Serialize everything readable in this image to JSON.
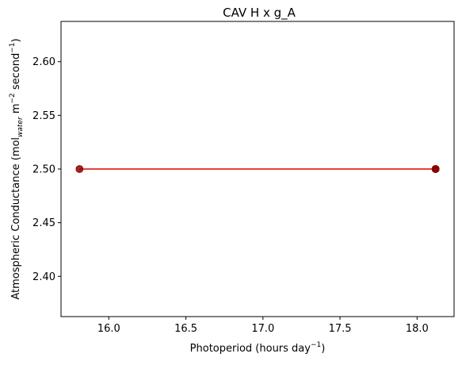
{
  "chart_data": {
    "type": "line",
    "title": "CAV H x g_A",
    "xlabel": {
      "main": "Photoperiod (hours day",
      "sup": "−1",
      "close": ")"
    },
    "ylabel": {
      "prefix": "Atmospheric Conductance (mol",
      "sub": "water",
      "middle": " m",
      "sup1": "−2",
      "middle2": " second",
      "sup2": "−1",
      "close": ")"
    },
    "xlim": [
      15.69,
      18.24
    ],
    "ylim": [
      2.3625,
      2.6375
    ],
    "xticks": [
      16.0,
      16.5,
      17.0,
      17.5,
      18.0
    ],
    "xtick_labels": [
      "16.0",
      "16.5",
      "17.0",
      "17.5",
      "18.0"
    ],
    "yticks": [
      2.4,
      2.45,
      2.5,
      2.55,
      2.6
    ],
    "ytick_labels": [
      "2.40",
      "2.45",
      "2.50",
      "2.55",
      "2.60"
    ],
    "grid": false,
    "series": [
      {
        "line_color": "#e00000",
        "marker_color": "#8b0000",
        "x": [
          15.81,
          18.12,
          18.12,
          18.12
        ],
        "y": [
          2.5,
          2.5,
          2.5,
          2.5
        ]
      }
    ]
  }
}
